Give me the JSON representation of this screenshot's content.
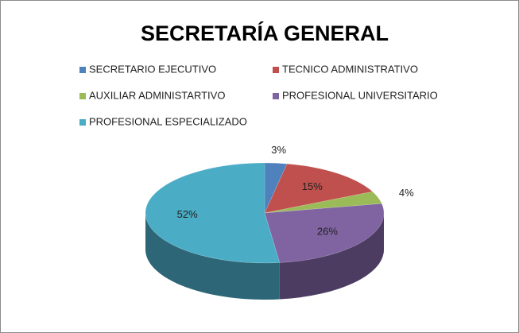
{
  "chart_data": {
    "type": "pie3d",
    "title": "SECRETARÍA GENERAL",
    "categories": [
      "SECRETARIO EJECUTIVO",
      "TECNICO ADMINISTRATIVO",
      "AUXILIAR ADMINISTARTIVO",
      "PROFESIONAL UNIVERSITARIO",
      "PROFESIONAL ESPECIALIZADO"
    ],
    "values": [
      3,
      15,
      4,
      26,
      52
    ],
    "value_labels": [
      "3%",
      "15%",
      "4%",
      "26%",
      "52%"
    ],
    "colors": [
      "#4f81bd",
      "#c0504d",
      "#9bbb59",
      "#8064a2",
      "#4bacc6"
    ],
    "legend": "top"
  }
}
